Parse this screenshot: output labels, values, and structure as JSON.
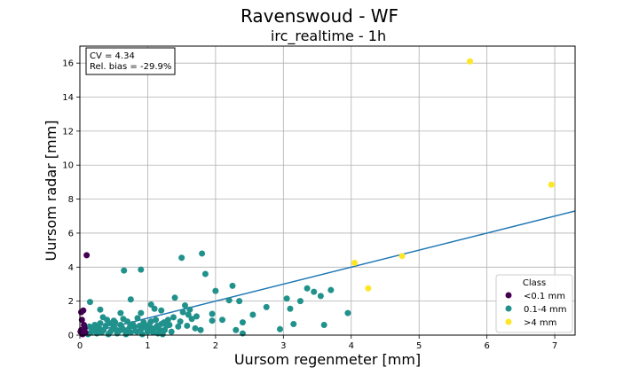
{
  "chart_data": {
    "type": "scatter",
    "suptitle": "Ravenswoud - WF",
    "title": "irc_realtime - 1h",
    "xlabel": "Uursom regenmeter [mm]",
    "ylabel": "Uursom radar [mm]",
    "xlim": [
      0,
      7.3
    ],
    "ylim": [
      0,
      17
    ],
    "x_ticks": [
      0,
      1,
      2,
      3,
      4,
      5,
      6,
      7
    ],
    "y_ticks": [
      0,
      2,
      4,
      6,
      8,
      10,
      12,
      14,
      16
    ],
    "grid": true,
    "stats": {
      "cv": "CV = 4.34",
      "bias": "Rel. bias = -29.9%"
    },
    "legend": {
      "title": "Class",
      "placement": "lower-right"
    },
    "series": [
      {
        "name": "<0.1 mm",
        "color": "#440154",
        "points": [
          [
            0.1,
            4.7
          ],
          [
            0.05,
            1.45
          ],
          [
            0.02,
            1.35
          ],
          [
            0.03,
            0.9
          ],
          [
            0.06,
            0.6
          ],
          [
            0.02,
            0.3
          ],
          [
            0.08,
            0.15
          ],
          [
            0.04,
            0.05
          ],
          [
            0.01,
            0.2
          ],
          [
            0.07,
            0.4
          ]
        ]
      },
      {
        "name": "0.1-4 mm",
        "color": "#21918c",
        "points": [
          [
            0.15,
            1.95
          ],
          [
            0.3,
            1.5
          ],
          [
            0.5,
            0.85
          ],
          [
            0.6,
            1.3
          ],
          [
            0.65,
            3.8
          ],
          [
            0.75,
            2.1
          ],
          [
            0.9,
            3.85
          ],
          [
            0.9,
            1.3
          ],
          [
            1.05,
            1.8
          ],
          [
            1.1,
            1.55
          ],
          [
            1.2,
            1.45
          ],
          [
            1.3,
            0.9
          ],
          [
            1.4,
            2.2
          ],
          [
            1.5,
            4.55
          ],
          [
            1.55,
            1.75
          ],
          [
            1.6,
            1.2
          ],
          [
            1.8,
            4.8
          ],
          [
            1.85,
            3.6
          ],
          [
            1.95,
            1.25
          ],
          [
            2.0,
            2.6
          ],
          [
            2.1,
            0.9
          ],
          [
            2.2,
            2.05
          ],
          [
            2.25,
            2.9
          ],
          [
            2.35,
            2.0
          ],
          [
            2.4,
            0.75
          ],
          [
            2.55,
            1.2
          ],
          [
            2.75,
            1.65
          ],
          [
            2.95,
            0.35
          ],
          [
            3.05,
            2.15
          ],
          [
            3.1,
            1.55
          ],
          [
            3.15,
            0.65
          ],
          [
            3.25,
            2.0
          ],
          [
            3.35,
            2.75
          ],
          [
            3.45,
            2.55
          ],
          [
            3.55,
            2.3
          ],
          [
            3.6,
            0.6
          ],
          [
            3.7,
            2.65
          ],
          [
            3.95,
            1.3
          ],
          [
            2.4,
            0.1
          ],
          [
            2.3,
            0.3
          ],
          [
            1.7,
            0.4
          ],
          [
            1.95,
            0.85
          ],
          [
            1.65,
            0.95
          ],
          [
            1.45,
            0.5
          ],
          [
            1.35,
            0.2
          ],
          [
            1.25,
            0.3
          ],
          [
            0.2,
            0.4
          ],
          [
            0.25,
            0.1
          ],
          [
            0.3,
            0.7
          ],
          [
            0.35,
            0.3
          ],
          [
            0.4,
            0.9
          ],
          [
            0.45,
            0.2
          ],
          [
            0.5,
            0.5
          ],
          [
            0.55,
            0.1
          ],
          [
            0.6,
            0.6
          ],
          [
            0.65,
            0.3
          ],
          [
            0.7,
            0.8
          ],
          [
            0.75,
            0.15
          ],
          [
            0.8,
            0.5
          ],
          [
            0.85,
            1.0
          ],
          [
            0.9,
            0.35
          ],
          [
            0.95,
            0.6
          ],
          [
            1.0,
            0.2
          ],
          [
            1.05,
            0.8
          ],
          [
            1.1,
            0.4
          ],
          [
            1.15,
            0.1
          ],
          [
            1.2,
            0.65
          ],
          [
            0.12,
            0.05
          ],
          [
            0.18,
            0.25
          ],
          [
            0.22,
            0.6
          ],
          [
            0.28,
            0.45
          ],
          [
            0.32,
            0.15
          ],
          [
            0.38,
            0.55
          ],
          [
            0.42,
            0.05
          ],
          [
            0.48,
            0.35
          ],
          [
            0.52,
            0.75
          ],
          [
            0.58,
            0.25
          ],
          [
            0.62,
            0.45
          ],
          [
            0.68,
            0.05
          ],
          [
            0.72,
            0.35
          ],
          [
            0.78,
            0.65
          ],
          [
            0.82,
            0.25
          ],
          [
            0.88,
            0.55
          ],
          [
            0.92,
            0.05
          ],
          [
            0.98,
            0.4
          ],
          [
            1.02,
            0.6
          ],
          [
            1.08,
            0.15
          ],
          [
            1.12,
            0.9
          ],
          [
            1.18,
            0.3
          ],
          [
            1.22,
            0.05
          ],
          [
            1.28,
            0.55
          ],
          [
            0.14,
            0.5
          ],
          [
            0.16,
            0.15
          ],
          [
            0.24,
            0.3
          ],
          [
            0.34,
            1.05
          ],
          [
            0.44,
            0.7
          ],
          [
            0.54,
            0.3
          ],
          [
            0.64,
            0.95
          ],
          [
            0.74,
            0.5
          ],
          [
            0.84,
            0.2
          ],
          [
            0.94,
            0.75
          ],
          [
            1.04,
            0.45
          ],
          [
            1.14,
            0.55
          ],
          [
            1.24,
            0.75
          ],
          [
            1.32,
            0.6
          ],
          [
            1.38,
            1.05
          ],
          [
            1.48,
            0.8
          ],
          [
            1.52,
            1.35
          ],
          [
            1.58,
            0.55
          ],
          [
            1.62,
            1.5
          ],
          [
            1.72,
            1.1
          ],
          [
            1.78,
            0.3
          ]
        ]
      },
      {
        "name": ">4 mm",
        "color": "#fde725",
        "points": [
          [
            4.05,
            4.25
          ],
          [
            4.25,
            2.75
          ],
          [
            4.75,
            4.65
          ],
          [
            5.75,
            16.1
          ],
          [
            6.95,
            8.85
          ]
        ]
      }
    ],
    "fit_line": {
      "color": "#1f77b4",
      "x": [
        0,
        7.3
      ],
      "y": [
        0,
        7.3
      ]
    }
  }
}
